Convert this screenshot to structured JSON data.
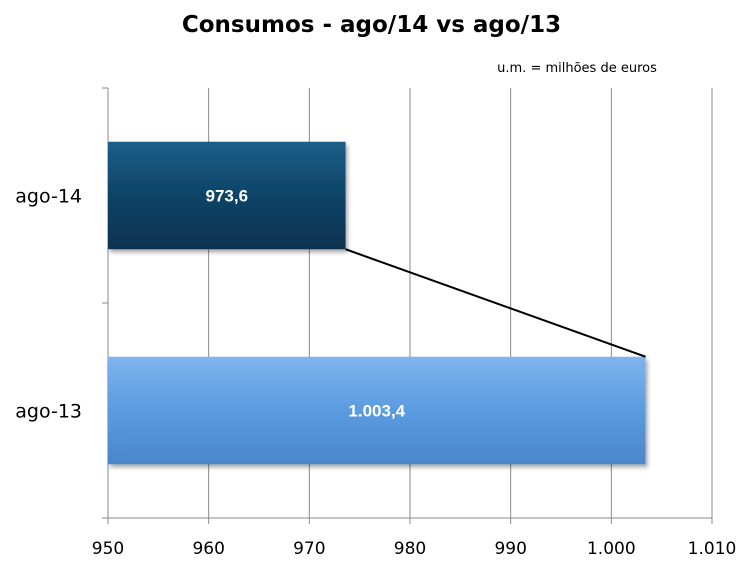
{
  "title": "Consumos  - ago/14 vs ago/13",
  "units_note": "u.m. = milhões de euros",
  "chart_data": {
    "type": "bar",
    "orientation": "horizontal",
    "title": "Consumos  - ago/14 vs ago/13",
    "categories": [
      "ago-14",
      "ago-13"
    ],
    "values": [
      973.6,
      1003.4
    ],
    "data_labels": [
      "973,6",
      "1.003,4"
    ],
    "xlim": [
      950,
      1010
    ],
    "xticks": [
      950,
      960,
      970,
      980,
      990,
      1000,
      1010
    ],
    "xtick_labels": [
      "950",
      "960",
      "970",
      "980",
      "990",
      "1.000",
      "1.010"
    ],
    "grid": "vertical",
    "legend": "none",
    "connector_line": true,
    "colors": {
      "ago-14": "#0e4466",
      "ago-13": "#5b9be0",
      "grid": "#8a8a8a",
      "axis": "#8a8a8a"
    }
  }
}
